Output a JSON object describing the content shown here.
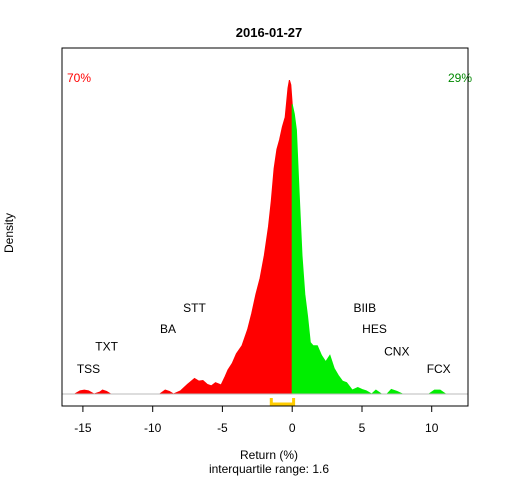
{
  "chart_data": {
    "type": "area",
    "title": "2016-01-27",
    "xlabel": "Return (%)",
    "ylabel": "Density",
    "subtitle": "interquartile range: 1.6",
    "xlim": [
      -16.5,
      12.6
    ],
    "ylim": [
      0,
      1
    ],
    "x_ticks": [
      -15,
      -10,
      -5,
      0,
      5,
      10
    ],
    "split_at": 0,
    "negative_share_label": "70%",
    "positive_share_label": "29%",
    "negative_color": "#ff0000",
    "positive_color": "#00ee00",
    "iqr_bracket": {
      "range": [
        -1.5,
        0.1
      ],
      "color": "#ffcc00"
    },
    "density": {
      "x": [
        -16.0,
        -15.6,
        -15.2,
        -14.9,
        -14.6,
        -14.2,
        -13.8,
        -13.6,
        -13.3,
        -13.0,
        -12.5,
        -11.0,
        -9.5,
        -9.1,
        -8.8,
        -8.5,
        -8.0,
        -7.5,
        -7.0,
        -6.7,
        -6.4,
        -6.1,
        -5.8,
        -5.5,
        -5.1,
        -4.8,
        -4.6,
        -4.3,
        -4.0,
        -3.6,
        -3.2,
        -2.9,
        -2.6,
        -2.3,
        -2.0,
        -1.7,
        -1.5,
        -1.3,
        -1.1,
        -0.9,
        -0.7,
        -0.5,
        -0.4,
        -0.3,
        -0.2,
        -0.1,
        0.0,
        0.15,
        0.3,
        0.5,
        0.7,
        0.9,
        1.1,
        1.3,
        1.5,
        1.8,
        2.1,
        2.4,
        2.7,
        3.0,
        3.3,
        3.6,
        3.9,
        4.3,
        4.7,
        5.0,
        5.3,
        5.7,
        6.0,
        6.4,
        6.8,
        7.1,
        7.5,
        7.9,
        8.3,
        8.8,
        9.3,
        9.8,
        10.2,
        10.6,
        11.0,
        11.4,
        12.0
      ],
      "y": [
        0.0,
        0.0,
        0.01,
        0.012,
        0.01,
        0.0,
        0.006,
        0.012,
        0.008,
        0.0,
        0.0,
        0.0,
        0.0,
        0.012,
        0.008,
        0.0,
        0.01,
        0.03,
        0.048,
        0.04,
        0.042,
        0.03,
        0.025,
        0.035,
        0.028,
        0.055,
        0.075,
        0.095,
        0.125,
        0.15,
        0.2,
        0.25,
        0.31,
        0.36,
        0.43,
        0.52,
        0.6,
        0.7,
        0.76,
        0.79,
        0.83,
        0.86,
        0.905,
        0.95,
        0.975,
        0.96,
        0.9,
        0.87,
        0.82,
        0.62,
        0.43,
        0.31,
        0.24,
        0.16,
        0.15,
        0.15,
        0.12,
        0.1,
        0.12,
        0.08,
        0.058,
        0.04,
        0.035,
        0.012,
        0.02,
        0.014,
        0.01,
        0.0,
        0.012,
        0.0,
        0.0,
        0.014,
        0.008,
        0.0,
        0.0,
        0.0,
        0.0,
        0.0,
        0.012,
        0.012,
        0.0,
        0.0,
        0.0
      ]
    },
    "annotations": [
      {
        "text": "TSS",
        "x": -14.6,
        "y": 0.065
      },
      {
        "text": "TXT",
        "x": -13.3,
        "y": 0.135
      },
      {
        "text": "BA",
        "x": -8.9,
        "y": 0.19
      },
      {
        "text": "STT",
        "x": -7.0,
        "y": 0.255
      },
      {
        "text": "BIIB",
        "x": 5.2,
        "y": 0.255
      },
      {
        "text": "HES",
        "x": 5.9,
        "y": 0.19
      },
      {
        "text": "CNX",
        "x": 7.5,
        "y": 0.12
      },
      {
        "text": "FCX",
        "x": 10.5,
        "y": 0.065
      }
    ]
  }
}
